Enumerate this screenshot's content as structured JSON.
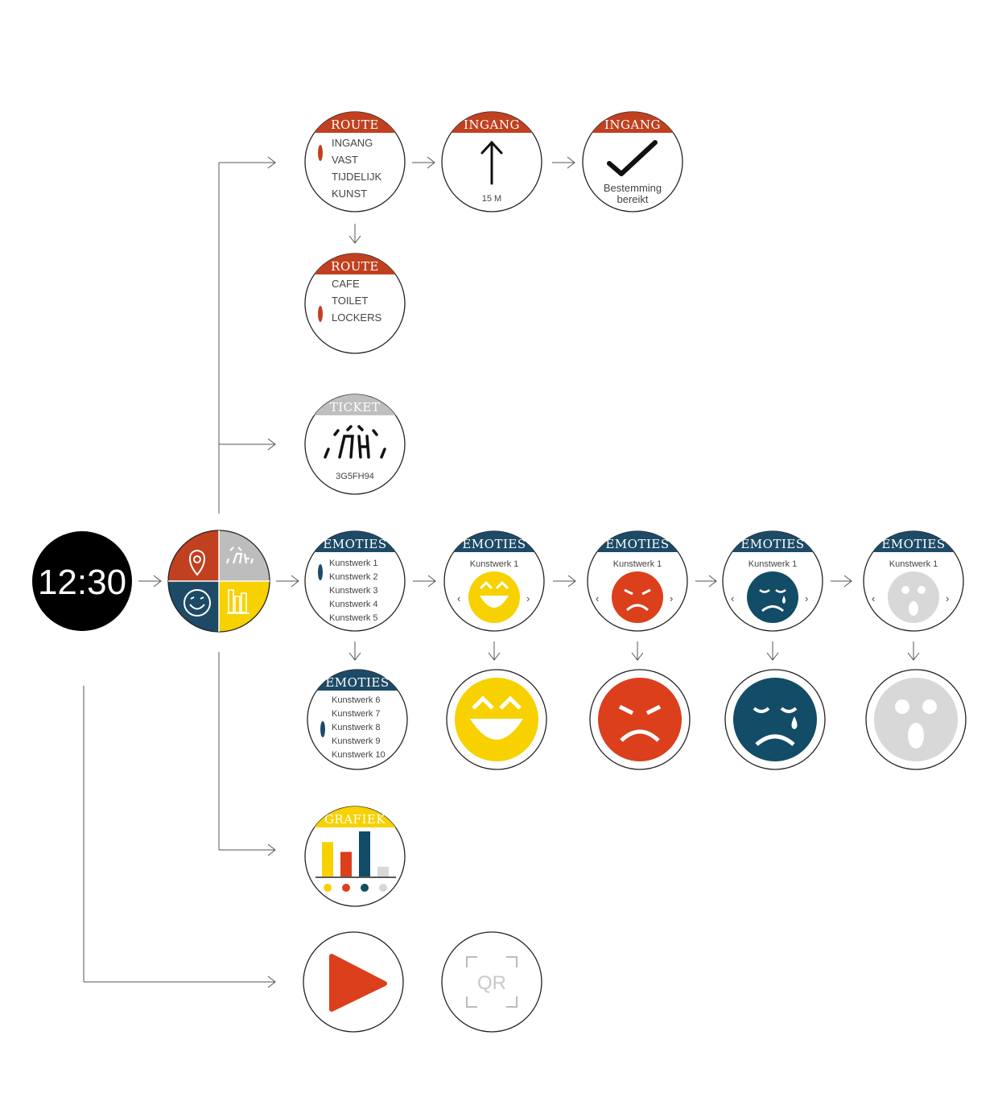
{
  "colors": {
    "route": "#c0401f",
    "emotion_header": "#1d4a66",
    "ticket": "#bfbfbf",
    "happy": "#f7d100",
    "angry": "#db3f1b",
    "sad": "#124c66",
    "surprised": "#d8d8d8",
    "play": "#db3f1b",
    "clock_bg": "#000000",
    "grafiek_header": "#f7d100"
  },
  "clock": {
    "time": "12:30"
  },
  "menu": {
    "quadrants": [
      "location-pin-icon",
      "ticket-icon",
      "smiley-icon",
      "chart-icon"
    ]
  },
  "route_menu": {
    "header": "ROUTE",
    "items": [
      "INGANG",
      "VAST",
      "TIJDELIJK",
      "KUNST"
    ]
  },
  "route_direction": {
    "header": "INGANG",
    "distance": "15 M",
    "icon": "arrow-up-icon"
  },
  "route_arrived": {
    "header": "INGANG",
    "line1": "Bestemming",
    "line2": "bereikt",
    "icon": "checkmark-icon"
  },
  "route_facilities": {
    "header": "ROUTE",
    "items": [
      "CAFE",
      "TOILET",
      "LOCKERS"
    ]
  },
  "ticket": {
    "header": "TICKET",
    "code": "3G5FH94",
    "icon": "ticket-logo-icon"
  },
  "emotions_list1": {
    "header": "EMOTIES",
    "items": [
      "Kunstwerk 1",
      "Kunstwerk 2",
      "Kunstwerk 3",
      "Kunstwerk 4",
      "Kunstwerk 5"
    ]
  },
  "emotions_list2": {
    "header": "EMOTIES",
    "items": [
      "Kunstwerk 6",
      "Kunstwerk 7",
      "Kunstwerk 8",
      "Kunstwerk 9",
      "Kunstwerk 10"
    ]
  },
  "emotion_screens": [
    {
      "header": "EMOTIES",
      "label": "Kunstwerk 1",
      "emotion": "happy"
    },
    {
      "header": "EMOTIES",
      "label": "Kunstwerk 1",
      "emotion": "angry"
    },
    {
      "header": "EMOTIES",
      "label": "Kunstwerk 1",
      "emotion": "sad"
    },
    {
      "header": "EMOTIES",
      "label": "Kunstwerk 1",
      "emotion": "surprised"
    }
  ],
  "nav": {
    "prev": "‹",
    "next": "›"
  },
  "grafiek": {
    "header": "GRAFIEK",
    "chart_data": {
      "type": "bar",
      "categories": [
        "happy",
        "angry",
        "sad",
        "surprised"
      ],
      "values": [
        42,
        30,
        55,
        12
      ]
    }
  },
  "media": {
    "play_icon": "play-icon",
    "qr_label": "QR"
  }
}
